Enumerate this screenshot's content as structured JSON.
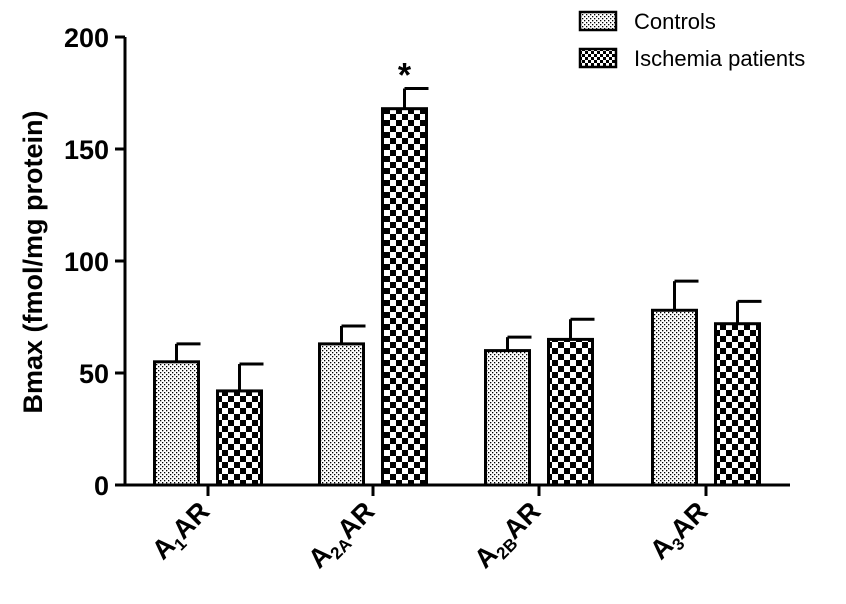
{
  "chart_data": {
    "type": "bar",
    "title": "",
    "xlabel": "",
    "ylabel": "Bmax (fmol/mg protein)",
    "ylim": [
      0,
      200
    ],
    "yticks": [
      0,
      50,
      100,
      150,
      200
    ],
    "grid": false,
    "legend_position": "top-right",
    "categories": [
      {
        "main": "A",
        "sub": "1",
        "suffix": "AR"
      },
      {
        "main": "A",
        "sub": "2A",
        "suffix": "AR"
      },
      {
        "main": "A",
        "sub": "2B",
        "suffix": "AR"
      },
      {
        "main": "A",
        "sub": "3",
        "suffix": "AR"
      }
    ],
    "series": [
      {
        "name": "Controls",
        "pattern": "dots",
        "values": [
          55,
          63,
          60,
          78
        ],
        "errors": [
          8,
          8,
          6,
          13
        ]
      },
      {
        "name": "Ischemia patients",
        "pattern": "checker",
        "values": [
          42,
          168,
          65,
          72
        ],
        "errors": [
          12,
          9,
          9,
          10
        ]
      }
    ],
    "annotations": [
      {
        "text": "*",
        "category_index": 1,
        "series_index": 1
      }
    ]
  }
}
